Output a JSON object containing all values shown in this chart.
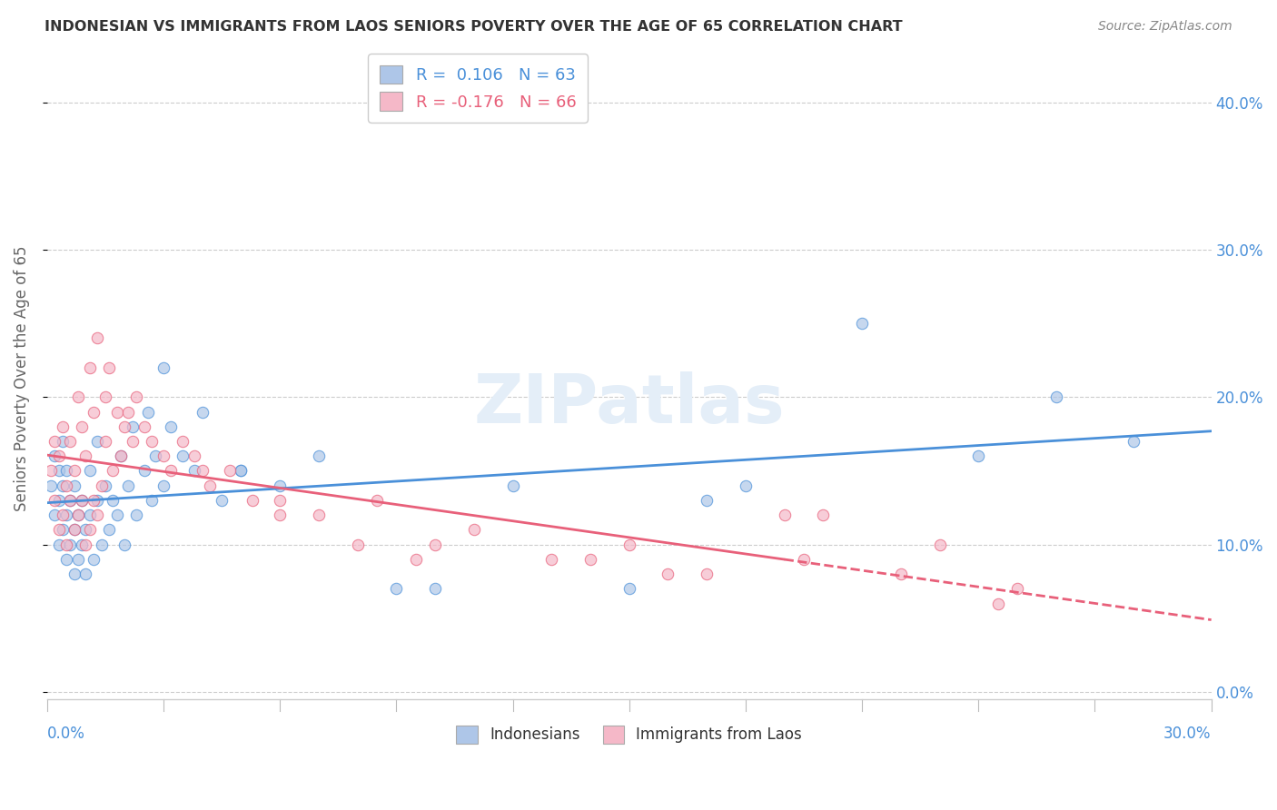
{
  "title": "INDONESIAN VS IMMIGRANTS FROM LAOS SENIORS POVERTY OVER THE AGE OF 65 CORRELATION CHART",
  "source": "Source: ZipAtlas.com",
  "ylabel": "Seniors Poverty Over the Age of 65",
  "legend_entry1": "R =  0.106   N = 63",
  "legend_entry2": "R = -0.176   N = 66",
  "legend_labels": [
    "Indonesians",
    "Immigrants from Laos"
  ],
  "color_blue": "#aec6e8",
  "color_pink": "#f5b8c8",
  "line_blue": "#4a90d9",
  "line_pink": "#e8607a",
  "background_color": "#ffffff",
  "grid_color": "#cccccc",
  "xlim": [
    0.0,
    0.3
  ],
  "ylim": [
    -0.005,
    0.43
  ],
  "ytick_values": [
    0.0,
    0.1,
    0.2,
    0.3,
    0.4
  ],
  "indonesians_x": [
    0.001,
    0.002,
    0.002,
    0.003,
    0.003,
    0.003,
    0.004,
    0.004,
    0.004,
    0.005,
    0.005,
    0.005,
    0.006,
    0.006,
    0.007,
    0.007,
    0.007,
    0.008,
    0.008,
    0.009,
    0.009,
    0.01,
    0.01,
    0.011,
    0.011,
    0.012,
    0.013,
    0.013,
    0.014,
    0.015,
    0.016,
    0.017,
    0.018,
    0.019,
    0.02,
    0.021,
    0.022,
    0.023,
    0.025,
    0.026,
    0.027,
    0.028,
    0.03,
    0.032,
    0.035,
    0.038,
    0.04,
    0.045,
    0.05,
    0.06,
    0.07,
    0.09,
    0.12,
    0.15,
    0.18,
    0.21,
    0.24,
    0.26,
    0.03,
    0.05,
    0.1,
    0.17,
    0.28
  ],
  "indonesians_y": [
    0.14,
    0.12,
    0.16,
    0.1,
    0.13,
    0.15,
    0.11,
    0.14,
    0.17,
    0.09,
    0.12,
    0.15,
    0.1,
    0.13,
    0.08,
    0.11,
    0.14,
    0.09,
    0.12,
    0.1,
    0.13,
    0.08,
    0.11,
    0.12,
    0.15,
    0.09,
    0.13,
    0.17,
    0.1,
    0.14,
    0.11,
    0.13,
    0.12,
    0.16,
    0.1,
    0.14,
    0.18,
    0.12,
    0.15,
    0.19,
    0.13,
    0.16,
    0.14,
    0.18,
    0.16,
    0.15,
    0.19,
    0.13,
    0.15,
    0.14,
    0.16,
    0.07,
    0.14,
    0.07,
    0.14,
    0.25,
    0.16,
    0.2,
    0.22,
    0.15,
    0.07,
    0.13,
    0.17
  ],
  "laos_x": [
    0.001,
    0.002,
    0.002,
    0.003,
    0.003,
    0.004,
    0.004,
    0.005,
    0.005,
    0.006,
    0.006,
    0.007,
    0.007,
    0.008,
    0.008,
    0.009,
    0.009,
    0.01,
    0.01,
    0.011,
    0.011,
    0.012,
    0.012,
    0.013,
    0.013,
    0.014,
    0.015,
    0.015,
    0.016,
    0.017,
    0.018,
    0.019,
    0.02,
    0.021,
    0.022,
    0.023,
    0.025,
    0.027,
    0.03,
    0.032,
    0.035,
    0.038,
    0.042,
    0.047,
    0.053,
    0.06,
    0.07,
    0.08,
    0.095,
    0.11,
    0.13,
    0.15,
    0.17,
    0.195,
    0.22,
    0.245,
    0.085,
    0.14,
    0.19,
    0.23,
    0.04,
    0.06,
    0.1,
    0.16,
    0.2,
    0.25
  ],
  "laos_y": [
    0.15,
    0.13,
    0.17,
    0.11,
    0.16,
    0.12,
    0.18,
    0.1,
    0.14,
    0.13,
    0.17,
    0.11,
    0.15,
    0.12,
    0.2,
    0.13,
    0.18,
    0.1,
    0.16,
    0.11,
    0.22,
    0.13,
    0.19,
    0.12,
    0.24,
    0.14,
    0.2,
    0.17,
    0.22,
    0.15,
    0.19,
    0.16,
    0.18,
    0.19,
    0.17,
    0.2,
    0.18,
    0.17,
    0.16,
    0.15,
    0.17,
    0.16,
    0.14,
    0.15,
    0.13,
    0.12,
    0.12,
    0.1,
    0.09,
    0.11,
    0.09,
    0.1,
    0.08,
    0.09,
    0.08,
    0.06,
    0.13,
    0.09,
    0.12,
    0.1,
    0.15,
    0.13,
    0.1,
    0.08,
    0.12,
    0.07
  ]
}
